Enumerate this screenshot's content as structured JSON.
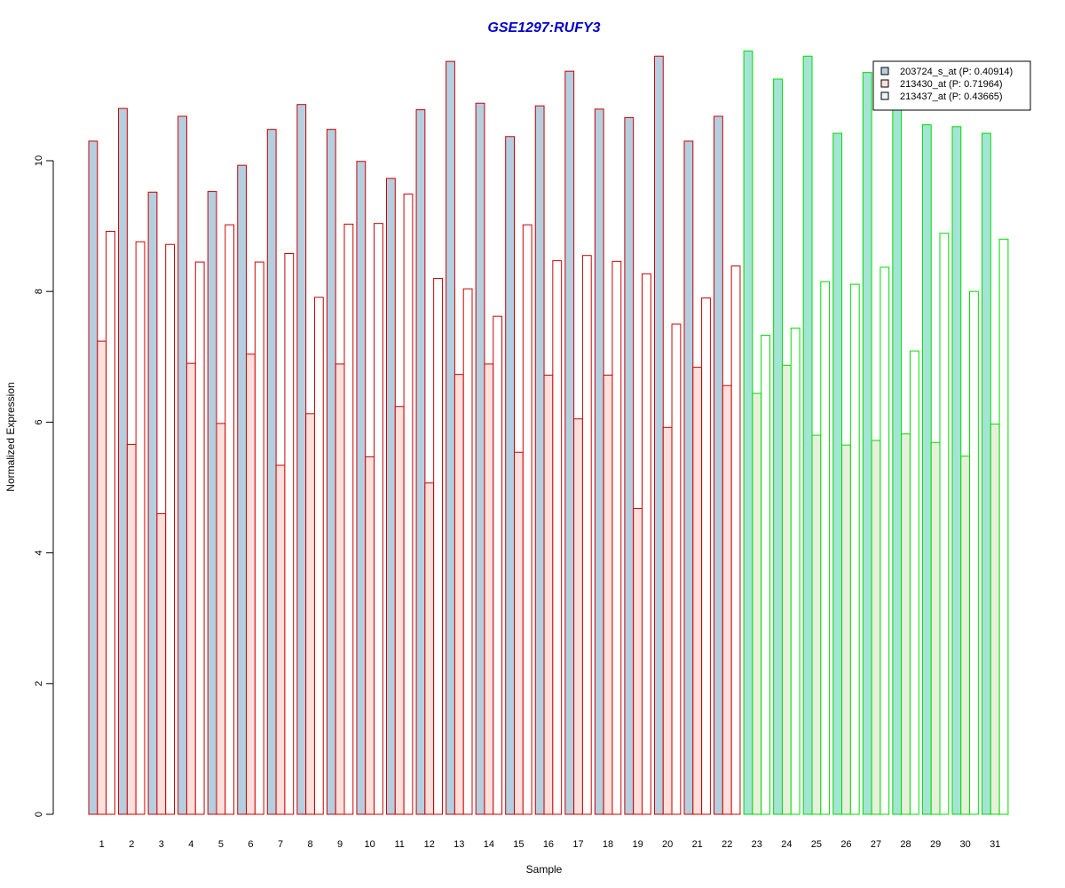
{
  "chart_data": {
    "type": "bar",
    "title": "GSE1297:RUFY3",
    "xlabel": "Sample",
    "ylabel": "Normalized Expression",
    "ylim": [
      0,
      11.8
    ],
    "yticks": [
      0,
      2,
      4,
      6,
      8,
      10
    ],
    "categories": [
      "1",
      "2",
      "3",
      "4",
      "5",
      "6",
      "7",
      "8",
      "9",
      "10",
      "11",
      "12",
      "13",
      "14",
      "15",
      "16",
      "17",
      "18",
      "19",
      "20",
      "21",
      "22",
      "23",
      "24",
      "25",
      "26",
      "27",
      "28",
      "29",
      "30",
      "31"
    ],
    "group_colors": {
      "group1": {
        "samples_from": 1,
        "samples_to": 22,
        "border": "#cc0000"
      },
      "group2": {
        "samples_from": 23,
        "samples_to": 31,
        "border": "#00dd00"
      }
    },
    "series": [
      {
        "name": "203724_s_at (P: 0.40914)",
        "fill": "#b4cfe0",
        "fill_group2": "#a4e4d4",
        "values": [
          10.3,
          10.8,
          9.52,
          10.68,
          9.53,
          9.93,
          10.48,
          10.86,
          10.48,
          9.99,
          9.73,
          10.78,
          11.52,
          10.88,
          10.37,
          10.84,
          11.37,
          10.79,
          10.66,
          11.6,
          10.3,
          10.68,
          11.68,
          11.25,
          11.6,
          10.42,
          11.35,
          10.9,
          10.55,
          10.52,
          10.42
        ]
      },
      {
        "name": "213430_at (P: 0.71964)",
        "fill": "#fde0dc",
        "fill_group2": "#e8f0dc",
        "values": [
          7.24,
          5.66,
          4.6,
          6.9,
          5.98,
          7.04,
          5.34,
          6.13,
          6.89,
          5.47,
          6.24,
          5.07,
          6.73,
          6.89,
          5.54,
          6.72,
          6.05,
          6.72,
          4.68,
          5.92,
          6.84,
          6.56,
          6.44,
          6.87,
          5.8,
          5.65,
          5.72,
          5.82,
          5.69,
          5.48,
          5.97
        ]
      },
      {
        "name": "213437_at (P: 0.43665)",
        "fill": "#ffffff",
        "fill_group2": "#ffffff",
        "values": [
          8.92,
          8.76,
          8.72,
          8.45,
          9.02,
          8.45,
          8.58,
          7.91,
          9.03,
          9.04,
          9.49,
          8.2,
          8.04,
          7.62,
          9.02,
          8.47,
          8.55,
          8.46,
          8.27,
          7.5,
          7.9,
          8.39,
          7.33,
          7.44,
          8.15,
          8.11,
          8.37,
          7.09,
          8.89,
          8.0,
          8.8
        ]
      }
    ],
    "legend": {
      "position": "top-right",
      "entries": [
        "203724_s_at (P: 0.40914)",
        "213430_at (P: 0.71964)",
        "213437_at (P: 0.43665)"
      ],
      "swatch_colors": [
        "#b4cfe0",
        "#fde0dc",
        "#e8f4f8"
      ]
    }
  }
}
